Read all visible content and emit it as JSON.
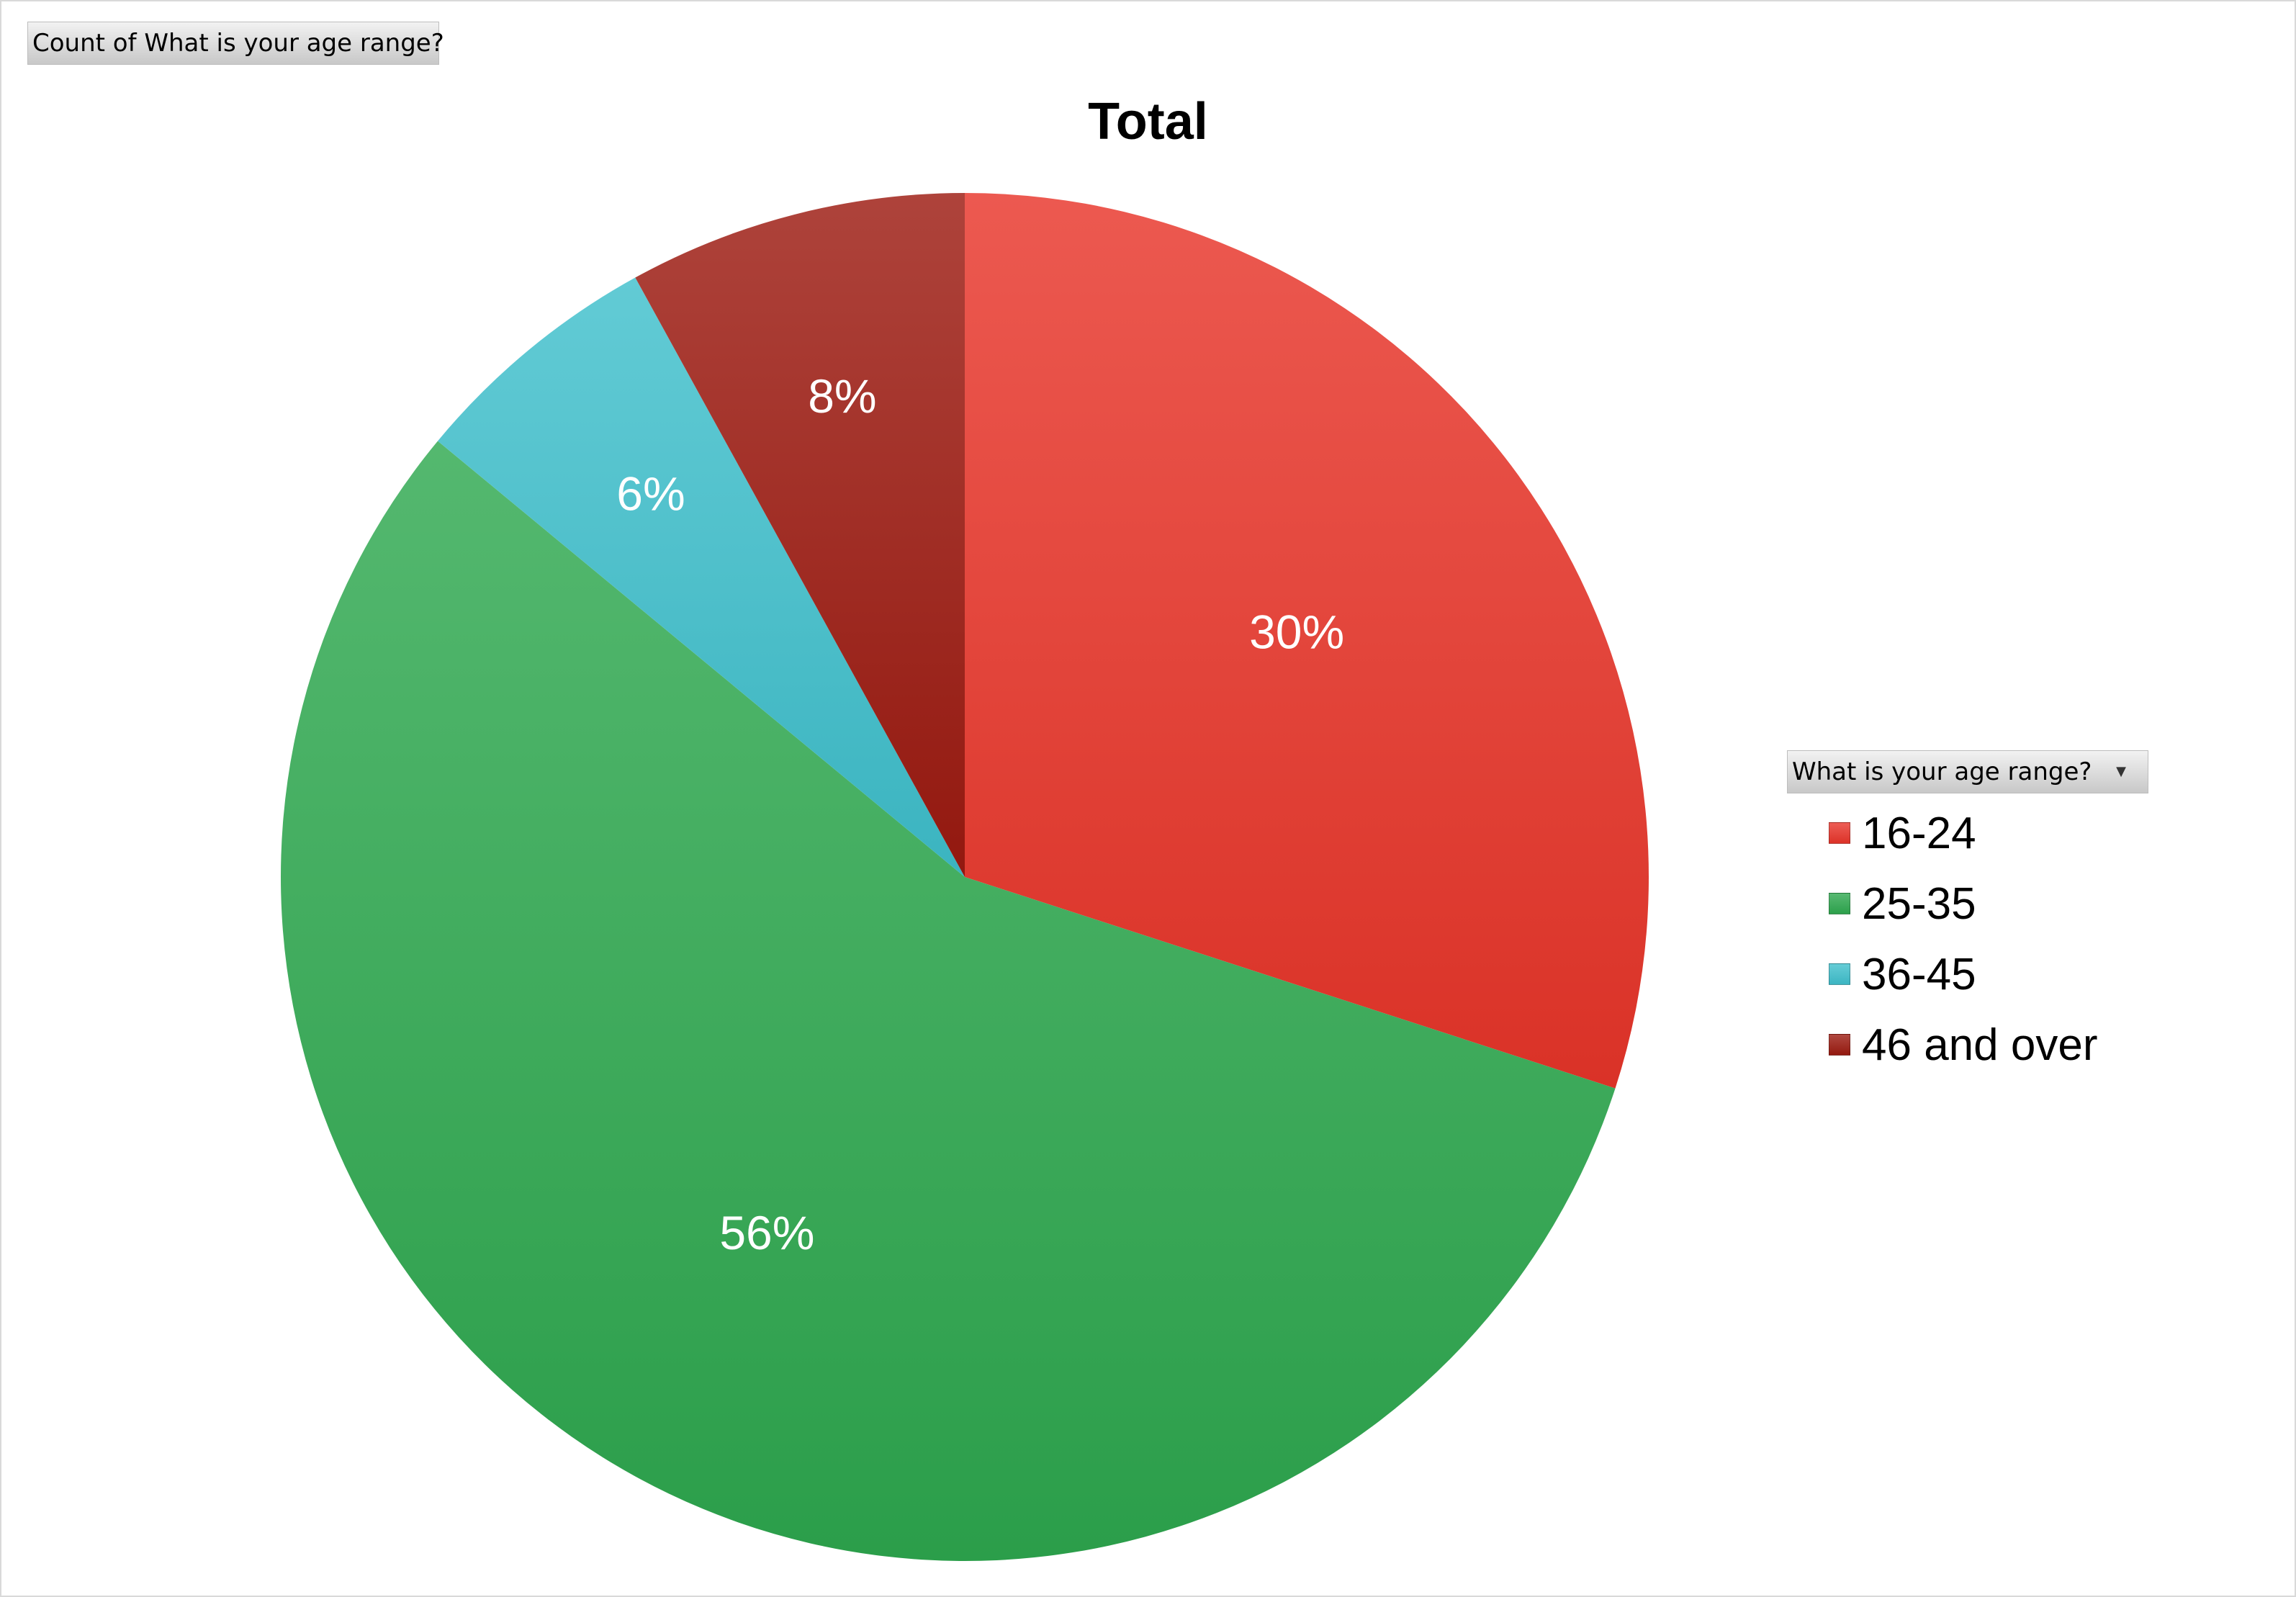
{
  "pivot": {
    "value_field": "Count of What is your age range?",
    "legend_field": "What is your age range?",
    "legend_dropdown_icon": "chevron-down-icon"
  },
  "chart_data": {
    "type": "pie",
    "title": "Total",
    "categories": [
      "16-24",
      "25-35",
      "36-45",
      "46 and over"
    ],
    "values": [
      30,
      56,
      6,
      8
    ],
    "labels": [
      "30%",
      "56%",
      "6%",
      "8%"
    ],
    "colors": [
      "#e8352a",
      "#2ea84f",
      "#3fbfcc",
      "#9c1a10"
    ],
    "legend_position": "right",
    "start_angle": "12 o'clock",
    "direction": "clockwise"
  },
  "legend": {
    "items": [
      {
        "label": "16-24",
        "color": "#e8352a"
      },
      {
        "label": "25-35",
        "color": "#2ea84f"
      },
      {
        "label": "36-45",
        "color": "#3fbfcc"
      },
      {
        "label": "46 and over",
        "color": "#9c1a10"
      }
    ]
  }
}
